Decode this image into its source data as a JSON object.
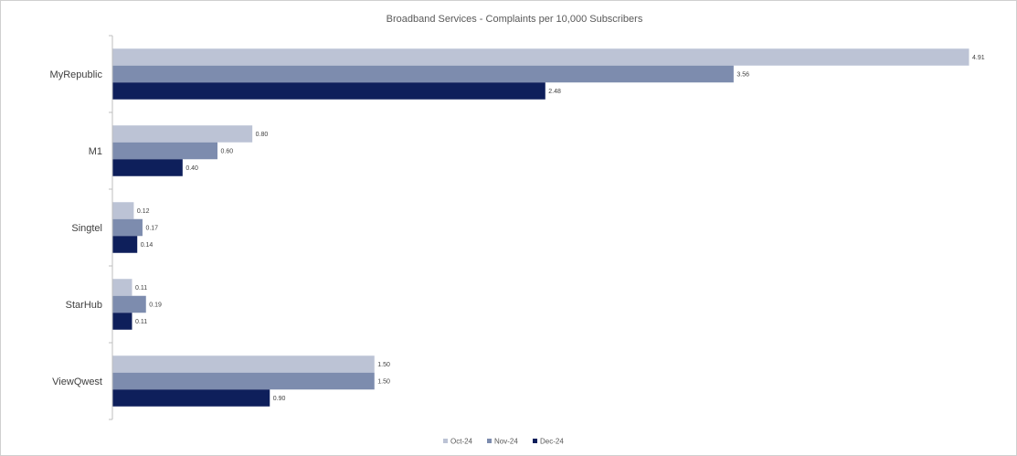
{
  "chart_data": {
    "type": "bar",
    "orientation": "horizontal",
    "title": "Broadband Services - Complaints per 10,000 Subscribers",
    "categories": [
      "MyRepublic",
      "M1",
      "Singtel",
      "StarHub",
      "ViewQwest"
    ],
    "series": [
      {
        "name": "Oct-24",
        "color": "#bcc3d5",
        "values": [
          4.91,
          0.8,
          0.12,
          0.11,
          1.5
        ],
        "labels": [
          "4.91",
          "0.80",
          "0.12",
          "0.11",
          "1.50"
        ]
      },
      {
        "name": "Nov-24",
        "color": "#7d8cae",
        "values": [
          3.56,
          0.6,
          0.17,
          0.19,
          1.5
        ],
        "labels": [
          "3.56",
          "0.60",
          "0.17",
          "0.19",
          "1.50"
        ]
      },
      {
        "name": "Dec-24",
        "color": "#0e1f5b",
        "values": [
          2.48,
          0.4,
          0.14,
          0.11,
          0.9
        ],
        "labels": [
          "2.48",
          "0.40",
          "0.14",
          "0.11",
          "0.90"
        ]
      }
    ],
    "xlim": [
      0,
      4.91
    ],
    "grid": false,
    "legend": "bottom"
  }
}
